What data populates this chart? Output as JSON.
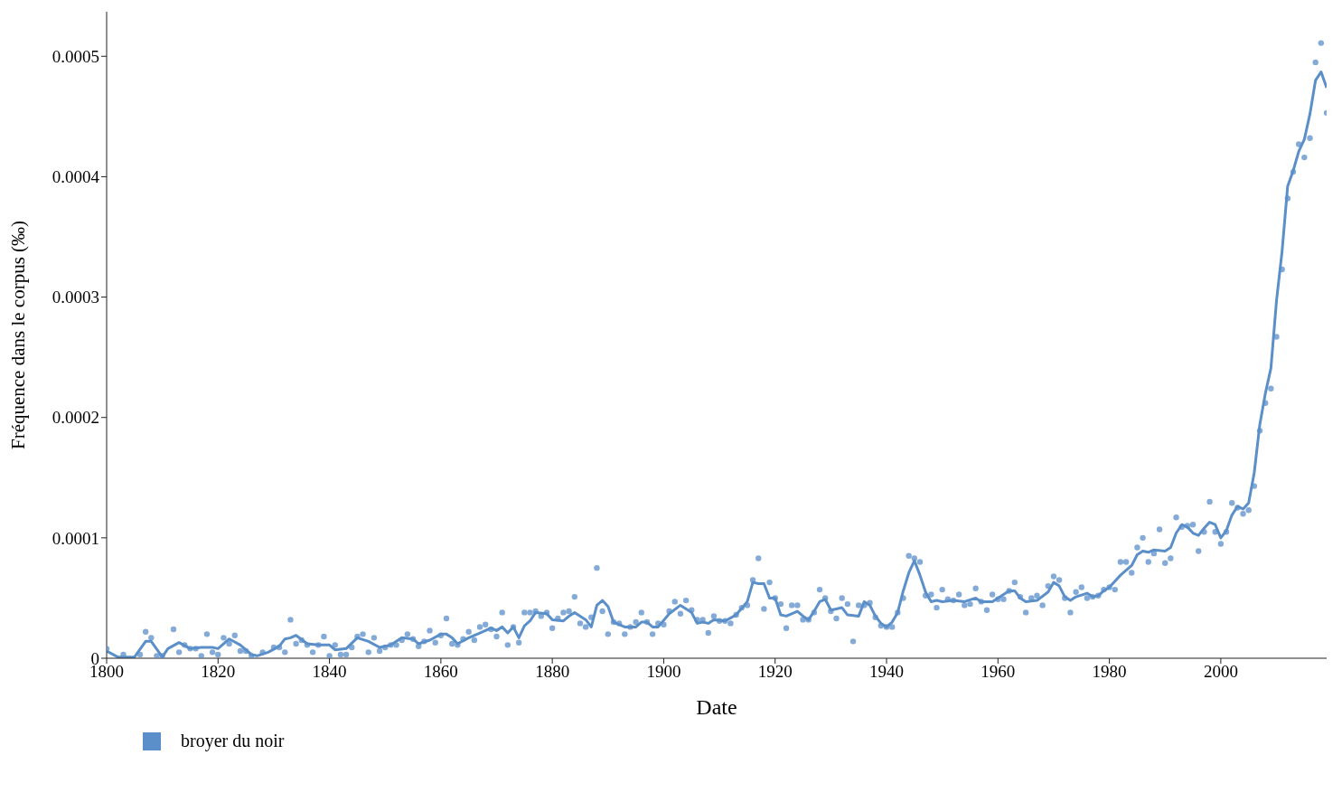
{
  "chart_data": {
    "type": "line",
    "xlabel": "Date",
    "ylabel": "Fréquence dans le corpus (‰)",
    "xlim": [
      1800,
      2019
    ],
    "xticks": [
      1800,
      1820,
      1840,
      1860,
      1880,
      1900,
      1920,
      1940,
      1960,
      1980,
      2000
    ],
    "ylim": [
      0,
      0.000537
    ],
    "yticks": [
      0,
      0.0001,
      0.0002,
      0.0003,
      0.0004,
      0.0005
    ],
    "legend": "bottom left",
    "series": [
      {
        "type": "scatter",
        "marker": "circle",
        "color": "#5b8fc9",
        "x": [
          1800,
          1803,
          1806,
          1807,
          1808,
          1809,
          1810,
          1812,
          1813,
          1814,
          1815,
          1816,
          1817,
          1818,
          1819,
          1820,
          1821,
          1822,
          1823,
          1824,
          1825,
          1826,
          1828,
          1830,
          1831,
          1832,
          1833,
          1834,
          1835,
          1836,
          1837,
          1838,
          1839,
          1840,
          1841,
          1842,
          1843,
          1844,
          1845,
          1846,
          1847,
          1848,
          1849,
          1850,
          1851,
          1852,
          1853,
          1854,
          1855,
          1856,
          1857,
          1858,
          1859,
          1860,
          1861,
          1862,
          1863,
          1864,
          1865,
          1866,
          1867,
          1868,
          1869,
          1870,
          1871,
          1872,
          1873,
          1874,
          1875,
          1876,
          1877,
          1878,
          1879,
          1880,
          1881,
          1882,
          1883,
          1884,
          1885,
          1886,
          1887,
          1888,
          1889,
          1890,
          1891,
          1892,
          1893,
          1894,
          1895,
          1896,
          1897,
          1898,
          1899,
          1900,
          1901,
          1902,
          1903,
          1904,
          1905,
          1906,
          1907,
          1908,
          1909,
          1910,
          1911,
          1912,
          1913,
          1914,
          1915,
          1916,
          1917,
          1918,
          1919,
          1920,
          1921,
          1922,
          1923,
          1924,
          1925,
          1926,
          1927,
          1928,
          1929,
          1930,
          1931,
          1932,
          1933,
          1934,
          1935,
          1936,
          1937,
          1938,
          1939,
          1940,
          1941,
          1942,
          1943,
          1944,
          1945,
          1946,
          1947,
          1948,
          1949,
          1950,
          1951,
          1952,
          1953,
          1954,
          1955,
          1956,
          1957,
          1958,
          1959,
          1960,
          1961,
          1962,
          1963,
          1964,
          1965,
          1966,
          1967,
          1968,
          1969,
          1970,
          1971,
          1972,
          1973,
          1974,
          1975,
          1976,
          1977,
          1978,
          1979,
          1980,
          1981,
          1982,
          1983,
          1984,
          1985,
          1986,
          1987,
          1988,
          1989,
          1990,
          1991,
          1992,
          1993,
          1994,
          1995,
          1996,
          1997,
          1998,
          1999,
          2000,
          2001,
          2002,
          2003,
          2004,
          2005,
          2006,
          2007,
          2008,
          2009,
          2010,
          2011,
          2012,
          2013,
          2014,
          2015,
          2016,
          2017,
          2018,
          2019
        ],
        "values": [
          8e-06,
          3e-06,
          3e-06,
          2.2e-05,
          1.7e-05,
          2e-06,
          2e-06,
          2.4e-05,
          5e-06,
          1.1e-05,
          8e-06,
          8e-06,
          2e-06,
          2e-05,
          5e-06,
          3e-06,
          1.7e-05,
          1.2e-05,
          1.9e-05,
          6e-06,
          6e-06,
          2e-06,
          5e-06,
          9e-06,
          9e-06,
          5e-06,
          3.2e-05,
          1.2e-05,
          1.5e-05,
          1.1e-05,
          5e-06,
          1.1e-05,
          1.8e-05,
          2e-06,
          1.1e-05,
          3e-06,
          3e-06,
          9e-06,
          1.8e-05,
          2e-05,
          5e-06,
          1.7e-05,
          6e-06,
          9e-06,
          1.1e-05,
          1.1e-05,
          1.5e-05,
          2e-05,
          1.6e-05,
          1e-05,
          1.4e-05,
          2.3e-05,
          1.3e-05,
          1.9e-05,
          3.3e-05,
          1.2e-05,
          1.1e-05,
          1.6e-05,
          2.2e-05,
          1.5e-05,
          2.6e-05,
          2.8e-05,
          2.4e-05,
          1.8e-05,
          3.8e-05,
          1.1e-05,
          2.6e-05,
          1.3e-05,
          3.8e-05,
          3.8e-05,
          3.9e-05,
          3.5e-05,
          3.8e-05,
          2.5e-05,
          3.3e-05,
          3.8e-05,
          3.9e-05,
          5.1e-05,
          2.9e-05,
          2.6e-05,
          3.4e-05,
          7.5e-05,
          3.9e-05,
          2e-05,
          3e-05,
          2.9e-05,
          2e-05,
          2.6e-05,
          3e-05,
          3.8e-05,
          3e-05,
          2e-05,
          2.9e-05,
          2.8e-05,
          3.9e-05,
          4.7e-05,
          3.7e-05,
          4.8e-05,
          4e-05,
          3.2e-05,
          3.2e-05,
          2.1e-05,
          3.5e-05,
          3.1e-05,
          3.1e-05,
          2.9e-05,
          3.6e-05,
          4.2e-05,
          4.4e-05,
          6.5e-05,
          8.3e-05,
          4.1e-05,
          6.3e-05,
          5e-05,
          4.5e-05,
          2.5e-05,
          4.4e-05,
          4.4e-05,
          3.2e-05,
          3.2e-05,
          3.8e-05,
          5.7e-05,
          5e-05,
          3.9e-05,
          3.3e-05,
          5e-05,
          4.5e-05,
          1.4e-05,
          4.4e-05,
          4.4e-05,
          4.6e-05,
          3.4e-05,
          2.7e-05,
          2.6e-05,
          2.6e-05,
          3.8e-05,
          5e-05,
          8.5e-05,
          8.3e-05,
          8e-05,
          5.2e-05,
          5.3e-05,
          4.2e-05,
          5.7e-05,
          4.9e-05,
          4.8e-05,
          5.3e-05,
          4.4e-05,
          4.5e-05,
          5.8e-05,
          4.7e-05,
          4e-05,
          5.3e-05,
          4.9e-05,
          4.9e-05,
          5.6e-05,
          6.3e-05,
          5.1e-05,
          3.8e-05,
          5e-05,
          5.2e-05,
          4.4e-05,
          6e-05,
          6.8e-05,
          6.5e-05,
          5e-05,
          3.8e-05,
          5.5e-05,
          5.9e-05,
          5e-05,
          5.1e-05,
          5.2e-05,
          5.7e-05,
          5.9e-05,
          5.7e-05,
          8e-05,
          8e-05,
          7.1e-05,
          9.2e-05,
          0.0001,
          8e-05,
          8.7e-05,
          0.000107,
          7.9e-05,
          8.3e-05,
          0.000117,
          0.000109,
          0.00011,
          0.000111,
          8.9e-05,
          0.000105,
          0.00013,
          0.000105,
          9.5e-05,
          0.000105,
          0.000129,
          0.000125,
          0.00012,
          0.000123,
          0.000143,
          0.000189,
          0.000212,
          0.000224,
          0.000267,
          0.000323,
          0.000382,
          0.000404,
          0.000427,
          0.000416,
          0.000432,
          0.000495,
          0.000511,
          0.000453
        ]
      },
      {
        "name": "broyer du noir",
        "color": "#5b8fc9",
        "x": [
          1800,
          1802,
          1805,
          1807,
          1808,
          1810,
          1811,
          1813,
          1815,
          1817,
          1819,
          1820,
          1822,
          1824,
          1826,
          1827,
          1829,
          1831,
          1832,
          1833,
          1834,
          1836,
          1838,
          1840,
          1841,
          1843,
          1845,
          1847,
          1849,
          1851,
          1853,
          1855,
          1856,
          1858,
          1860,
          1861,
          1862,
          1863,
          1865,
          1867,
          1869,
          1870,
          1871,
          1872,
          1873,
          1874,
          1875,
          1876,
          1877,
          1879,
          1880,
          1882,
          1883,
          1884,
          1886,
          1887,
          1888,
          1889,
          1890,
          1891,
          1893,
          1895,
          1896,
          1897,
          1898,
          1899,
          1901,
          1903,
          1905,
          1906,
          1907,
          1908,
          1909,
          1911,
          1913,
          1915,
          1916,
          1917,
          1918,
          1919,
          1920,
          1921,
          1922,
          1924,
          1925,
          1926,
          1927,
          1928,
          1929,
          1930,
          1931,
          1932,
          1933,
          1935,
          1936,
          1937,
          1938,
          1939,
          1940,
          1941,
          1942,
          1943,
          1944,
          1945,
          1946,
          1947,
          1948,
          1949,
          1950,
          1952,
          1954,
          1956,
          1957,
          1959,
          1960,
          1962,
          1963,
          1964,
          1965,
          1967,
          1969,
          1970,
          1971,
          1972,
          1973,
          1974,
          1976,
          1977,
          1978,
          1979,
          1980,
          1982,
          1984,
          1985,
          1986,
          1987,
          1988,
          1990,
          1991,
          1992,
          1993,
          1994,
          1995,
          1996,
          1997,
          1998,
          1999,
          2000,
          2001,
          2002,
          2003,
          2004,
          2005,
          2006,
          2007,
          2008,
          2009,
          2010,
          2011,
          2012,
          2013,
          2014,
          2015,
          2016,
          2017,
          2018,
          2019
        ],
        "values": [
          6e-06,
          1e-06,
          1e-06,
          1.4e-05,
          1.4e-05,
          1e-06,
          8e-06,
          1.3e-05,
          8e-06,
          9e-06,
          9e-06,
          8e-06,
          1.6e-05,
          1.1e-05,
          3e-06,
          2e-06,
          5e-06,
          1e-05,
          1.6e-05,
          1.7e-05,
          1.9e-05,
          1.2e-05,
          1.1e-05,
          1.1e-05,
          7e-06,
          8e-06,
          1.7e-05,
          1.4e-05,
          9e-06,
          1.1e-05,
          1.7e-05,
          1.6e-05,
          1.2e-05,
          1.5e-05,
          2e-05,
          2e-05,
          1.7e-05,
          1.2e-05,
          1.7e-05,
          2.1e-05,
          2.5e-05,
          2.3e-05,
          2.6e-05,
          2.1e-05,
          2.6e-05,
          1.7e-05,
          2.7e-05,
          3.1e-05,
          3.8e-05,
          3.7e-05,
          3.2e-05,
          3.1e-05,
          3.5e-05,
          3.8e-05,
          3.2e-05,
          2.6e-05,
          4.4e-05,
          4.8e-05,
          4.3e-05,
          3e-05,
          2.6e-05,
          2.6e-05,
          3e-05,
          3e-05,
          2.6e-05,
          2.6e-05,
          3.7e-05,
          4.4e-05,
          3.8e-05,
          2.9e-05,
          3e-05,
          2.9e-05,
          3.2e-05,
          3.1e-05,
          3.6e-05,
          4.7e-05,
          6.3e-05,
          6.2e-05,
          6.2e-05,
          5e-05,
          5e-05,
          3.6e-05,
          3.5e-05,
          3.9e-05,
          3.5e-05,
          3.2e-05,
          3.9e-05,
          4.7e-05,
          4.9e-05,
          4e-05,
          4.1e-05,
          4.2e-05,
          3.6e-05,
          3.5e-05,
          4.7e-05,
          4.4e-05,
          3.5e-05,
          2.9e-05,
          2.6e-05,
          3e-05,
          3.8e-05,
          5.6e-05,
          7.1e-05,
          8.1e-05,
          6.9e-05,
          5.5e-05,
          4.7e-05,
          4.8e-05,
          4.7e-05,
          4.8e-05,
          4.7e-05,
          5e-05,
          4.7e-05,
          4.7e-05,
          5e-05,
          5.6e-05,
          5.6e-05,
          5e-05,
          4.7e-05,
          4.8e-05,
          5.5e-05,
          6.3e-05,
          6e-05,
          5.1e-05,
          4.8e-05,
          5.1e-05,
          5.4e-05,
          5.1e-05,
          5.2e-05,
          5.6e-05,
          5.9e-05,
          6.9e-05,
          7.7e-05,
          8.6e-05,
          8.9e-05,
          8.8e-05,
          9e-05,
          8.9e-05,
          9.2e-05,
          0.000104,
          0.000111,
          0.000109,
          0.000104,
          0.000102,
          0.000108,
          0.000113,
          0.000111,
          0.0001,
          0.000106,
          0.000119,
          0.000126,
          0.000124,
          0.000129,
          0.000154,
          0.000194,
          0.00022,
          0.000241,
          0.000297,
          0.000338,
          0.000392,
          0.000405,
          0.000421,
          0.000431,
          0.000452,
          0.00048,
          0.000487,
          0.000474
        ]
      }
    ]
  }
}
